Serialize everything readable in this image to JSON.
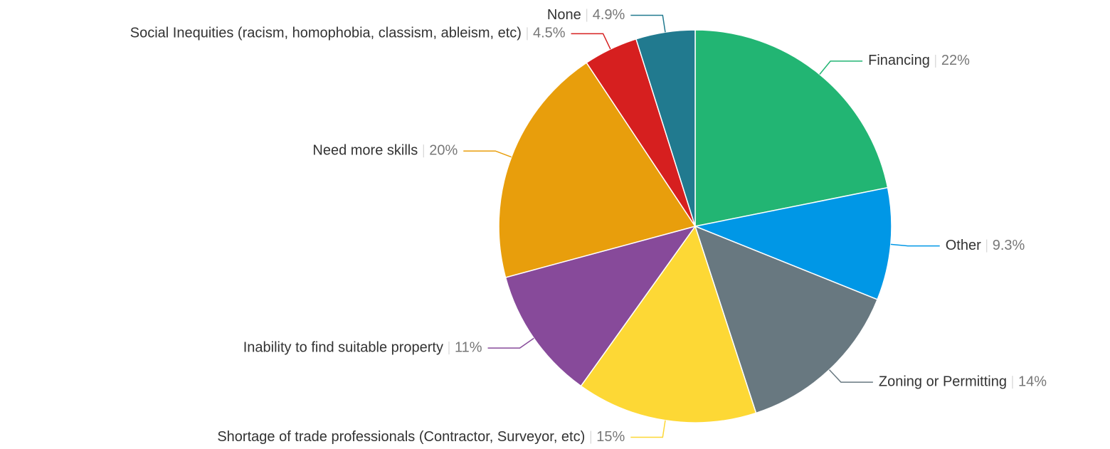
{
  "chart_data": {
    "type": "pie",
    "categories": [
      "Financing",
      "Other",
      "Zoning or Permitting",
      "Shortage of trade professionals (Contractor, Surveyor, etc)",
      "Inability to find suitable property",
      "Need more skills",
      "Social Inequities (racism, homophobia, classism, ableism, etc)",
      "None"
    ],
    "values": [
      22,
      9.3,
      14,
      15,
      11,
      20,
      4.5,
      4.9
    ],
    "value_labels": [
      "22%",
      "9.3%",
      "14%",
      "15%",
      "11%",
      "20%",
      "4.5%",
      "4.9%"
    ],
    "colors": [
      "#22b573",
      "#0097e6",
      "#687880",
      "#fdd835",
      "#874a9a",
      "#e89e0c",
      "#d61f1f",
      "#217a8f"
    ]
  }
}
